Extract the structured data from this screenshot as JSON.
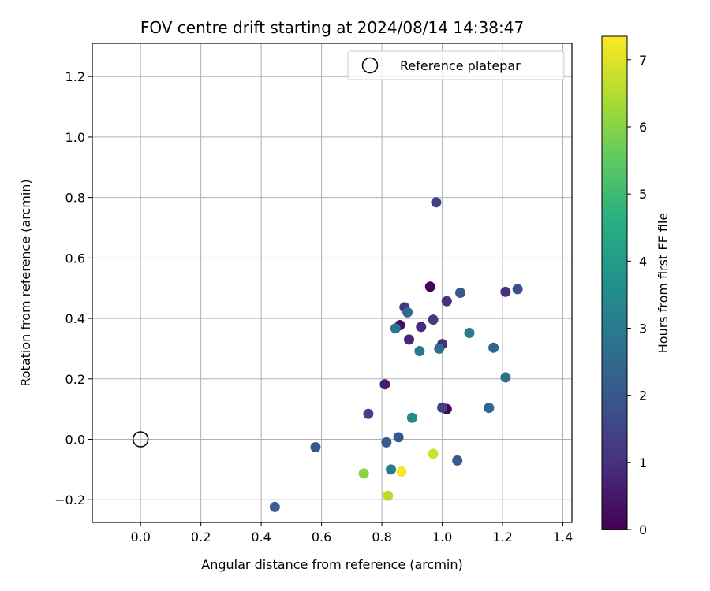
{
  "chart_data": {
    "type": "scatter",
    "title": "FOV centre drift starting at 2024/08/14 14:38:47",
    "xlabel": "Angular distance from reference (arcmin)",
    "ylabel": "Rotation from reference (arcmin)",
    "xlim": [
      -0.16,
      1.43
    ],
    "ylim": [
      -0.275,
      1.31
    ],
    "xticks": [
      "0.0",
      "0.2",
      "0.4",
      "0.6",
      "0.8",
      "1.0",
      "1.2",
      "1.4"
    ],
    "xtick_values": [
      0.0,
      0.2,
      0.4,
      0.6,
      0.8,
      1.0,
      1.2,
      1.4
    ],
    "yticks": [
      "−0.2",
      "0.0",
      "0.2",
      "0.4",
      "0.6",
      "0.8",
      "1.0",
      "1.2"
    ],
    "ytick_values": [
      -0.2,
      0.0,
      0.2,
      0.4,
      0.6,
      0.8,
      1.0,
      1.2
    ],
    "grid": true,
    "legend": {
      "position": "top-right",
      "entries": [
        "Reference platepar"
      ]
    },
    "colorbar": {
      "label": "Hours from first FF file",
      "min": 0,
      "max": 7.35,
      "ticks": [
        "0",
        "1",
        "2",
        "3",
        "4",
        "5",
        "6",
        "7"
      ],
      "tick_values": [
        0,
        1,
        2,
        3,
        4,
        5,
        6,
        7
      ],
      "colormap": "viridis"
    },
    "reference_point": {
      "x": 0.0,
      "y": 0.0
    },
    "points": [
      {
        "x": 0.96,
        "y": 0.505,
        "hours": 0.05
      },
      {
        "x": 1.015,
        "y": 0.1,
        "hours": 0.1
      },
      {
        "x": 0.86,
        "y": 0.378,
        "hours": 0.3
      },
      {
        "x": 0.81,
        "y": 0.182,
        "hours": 0.6
      },
      {
        "x": 0.89,
        "y": 0.33,
        "hours": 0.8
      },
      {
        "x": 0.93,
        "y": 0.372,
        "hours": 0.9
      },
      {
        "x": 1.0,
        "y": 0.315,
        "hours": 0.9
      },
      {
        "x": 1.21,
        "y": 0.488,
        "hours": 1.0
      },
      {
        "x": 1.015,
        "y": 0.457,
        "hours": 1.1
      },
      {
        "x": 0.875,
        "y": 0.437,
        "hours": 1.2
      },
      {
        "x": 0.97,
        "y": 0.396,
        "hours": 1.3
      },
      {
        "x": 0.98,
        "y": 0.784,
        "hours": 1.4
      },
      {
        "x": 1.0,
        "y": 0.105,
        "hours": 1.4
      },
      {
        "x": 0.755,
        "y": 0.084,
        "hours": 1.5
      },
      {
        "x": 1.25,
        "y": 0.497,
        "hours": 1.9
      },
      {
        "x": 1.06,
        "y": 0.485,
        "hours": 2.0
      },
      {
        "x": 0.58,
        "y": -0.026,
        "hours": 2.0
      },
      {
        "x": 0.855,
        "y": 0.007,
        "hours": 2.0
      },
      {
        "x": 0.815,
        "y": -0.01,
        "hours": 2.1
      },
      {
        "x": 1.05,
        "y": -0.07,
        "hours": 2.1
      },
      {
        "x": 0.445,
        "y": -0.224,
        "hours": 2.2
      },
      {
        "x": 1.17,
        "y": 0.303,
        "hours": 2.4
      },
      {
        "x": 1.155,
        "y": 0.104,
        "hours": 2.4
      },
      {
        "x": 0.885,
        "y": 0.42,
        "hours": 2.6
      },
      {
        "x": 0.99,
        "y": 0.3,
        "hours": 2.6
      },
      {
        "x": 1.21,
        "y": 0.205,
        "hours": 2.7
      },
      {
        "x": 0.845,
        "y": 0.367,
        "hours": 2.8
      },
      {
        "x": 0.925,
        "y": 0.292,
        "hours": 3.0
      },
      {
        "x": 0.83,
        "y": -0.1,
        "hours": 3.0
      },
      {
        "x": 1.09,
        "y": 0.352,
        "hours": 3.1
      },
      {
        "x": 0.9,
        "y": 0.071,
        "hours": 3.5
      },
      {
        "x": 0.74,
        "y": -0.113,
        "hours": 6.0
      },
      {
        "x": 0.82,
        "y": -0.187,
        "hours": 6.5
      },
      {
        "x": 0.97,
        "y": -0.048,
        "hours": 6.8
      },
      {
        "x": 0.865,
        "y": -0.107,
        "hours": 7.3
      }
    ]
  }
}
